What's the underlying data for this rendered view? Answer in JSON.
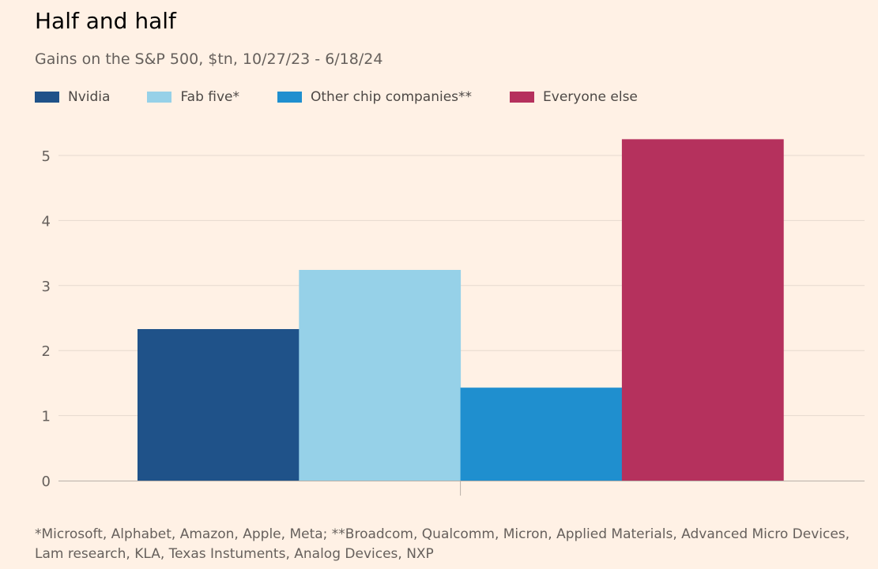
{
  "title": "Half and half",
  "subtitle": "Gains on the S&P 500, $tn, 10/27/23 - 6/18/24",
  "footnote": "*Microsoft, Alphabet, Amazon, Apple, Meta; **Broadcom, Qualcomm, Micron, Applied Materials, Advanced Micro Devices, Lam research, KLA, Texas Instuments, Analog Devices, NXP",
  "colors": {
    "background": "#fff1e5",
    "grid": "#e6d9ce",
    "baseline": "#b8b0a8",
    "tick_label": "#66605c"
  },
  "chart_data": {
    "type": "bar",
    "title": "Half and half",
    "subtitle": "Gains on the S&P 500, $tn, 10/27/23 - 6/18/24",
    "xlabel": "",
    "ylabel": "",
    "ylim": [
      0,
      5.5
    ],
    "yticks": [
      0,
      1,
      2,
      3,
      4,
      5
    ],
    "grid": true,
    "legend_position": "top-left",
    "series": [
      {
        "name": "Nvidia",
        "value": 2.33,
        "color": "#1f5289"
      },
      {
        "name": "Fab five*",
        "value": 3.24,
        "color": "#96d1e8"
      },
      {
        "name": "Other chip companies**",
        "value": 1.43,
        "color": "#1f8fcf"
      },
      {
        "name": "Everyone else",
        "value": 5.25,
        "color": "#b5315d"
      }
    ]
  }
}
